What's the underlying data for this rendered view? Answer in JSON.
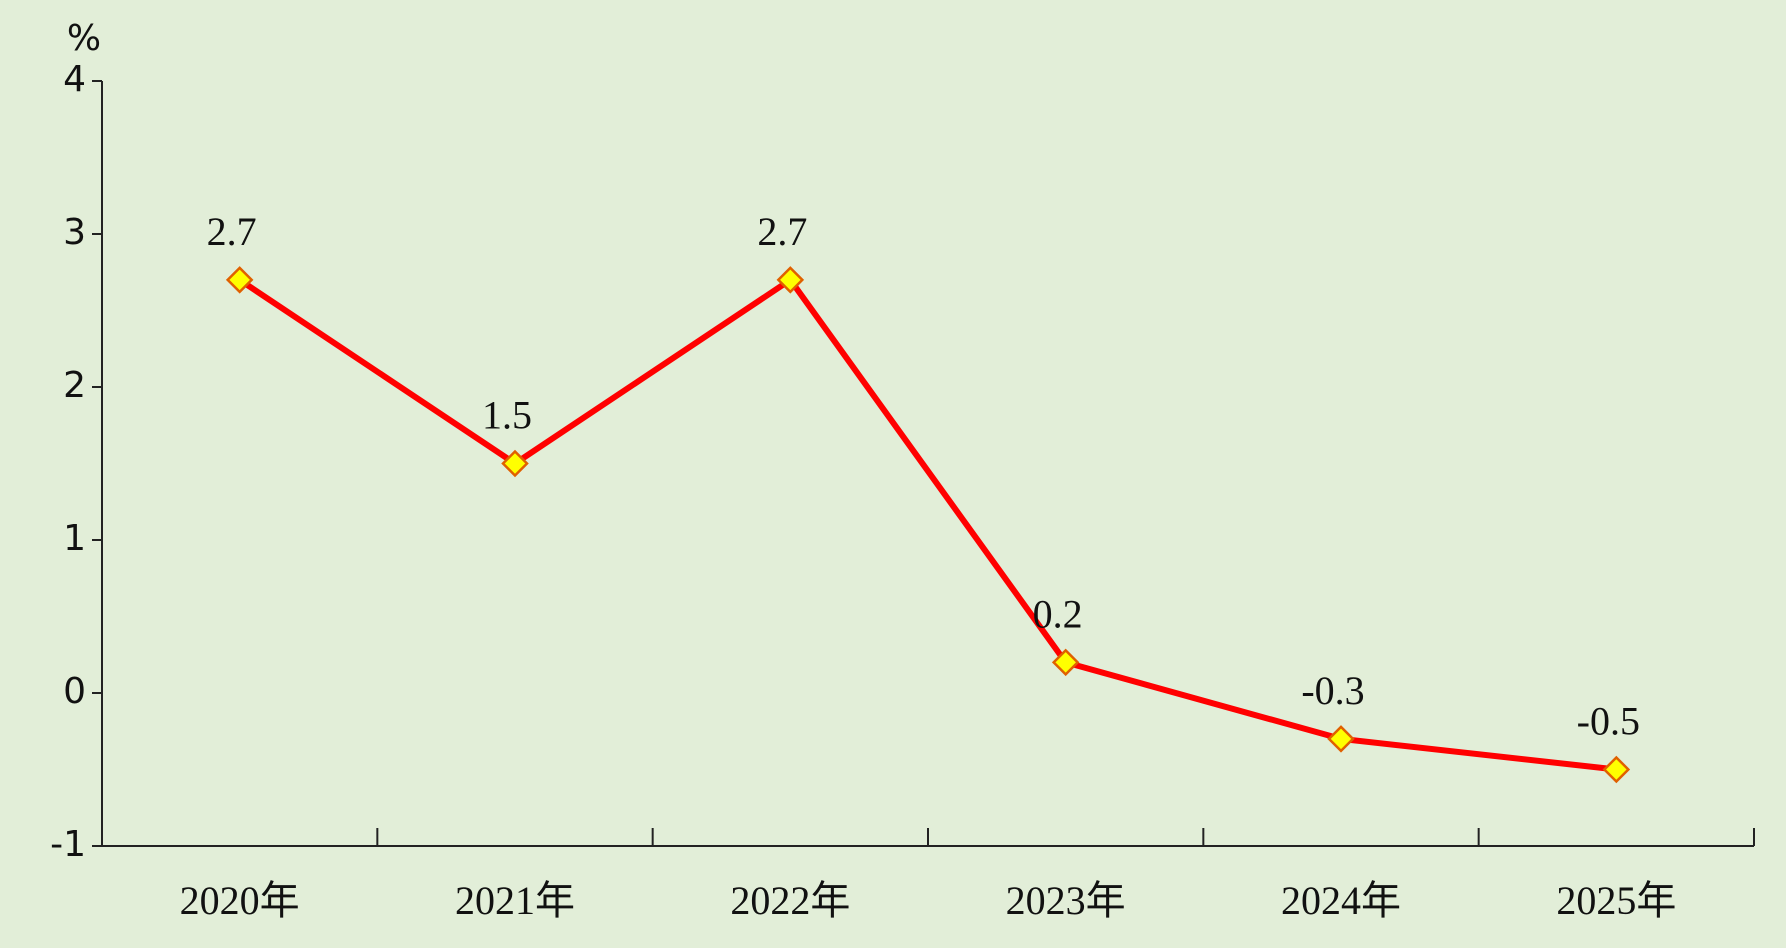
{
  "chart_data": {
    "type": "line",
    "y_label": "%",
    "categories": [
      "2020年",
      "2021年",
      "2022年",
      "2023年",
      "2024年",
      "2025年"
    ],
    "series": [
      {
        "color": "#ff0000",
        "values": [
          2.7,
          1.5,
          2.7,
          0.2,
          -0.3,
          -0.5
        ]
      }
    ],
    "ylim": [
      -1,
      4
    ],
    "yticks": [
      -1,
      0,
      1,
      2,
      3,
      4
    ],
    "grid": false
  }
}
